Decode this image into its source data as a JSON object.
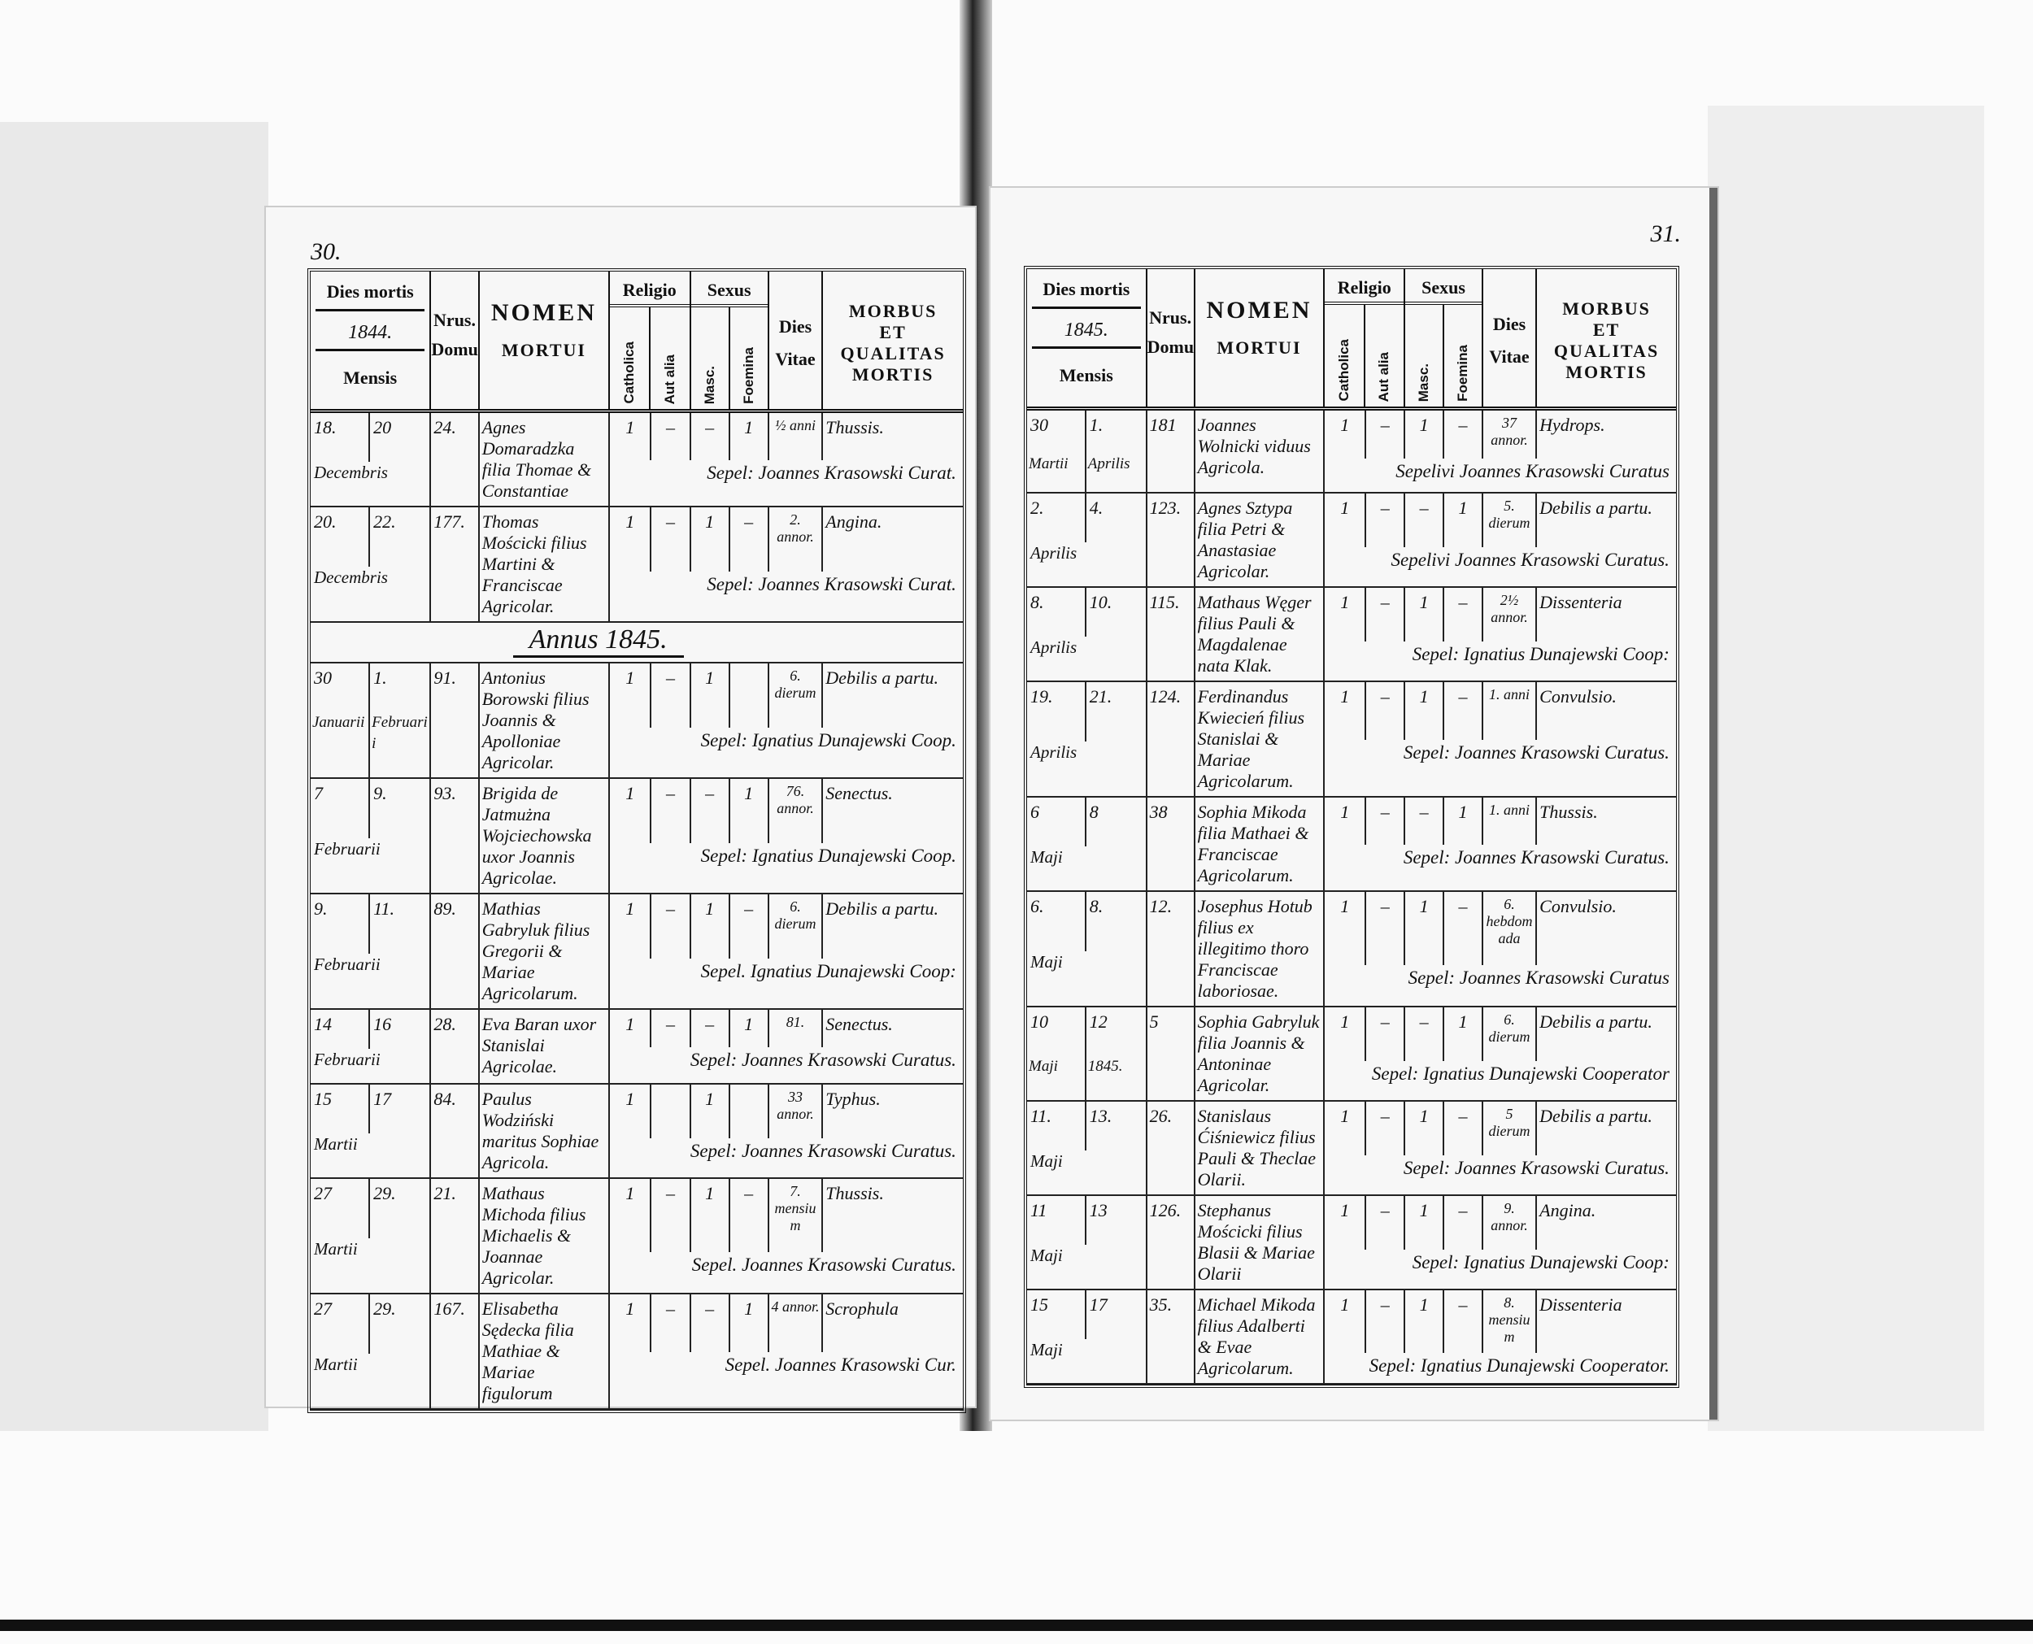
{
  "header": {
    "dies_mortis": "Dies mortis",
    "mensis": "Mensis",
    "nrus": "Nrus.",
    "domus": "Domus",
    "nomen": "NOMEN",
    "mortui": "MORTUI",
    "religio": "Religio",
    "catholica": "Catholica",
    "aut_alia": "Aut alia",
    "sexus": "Sexus",
    "masc": "Masc.",
    "foemina": "Foemina",
    "dies": "Dies",
    "vitae": "Vitae",
    "morbus": [
      "MORBUS",
      "ET",
      "QUALITAS",
      "MORTIS"
    ]
  },
  "pages": [
    {
      "page_number": "30.",
      "year": "1844.",
      "rows": [
        {
          "d1": "18.",
          "d2": "20",
          "m1": "Decembris",
          "m2": "",
          "house": "24.",
          "name": "Agnes Domaradzka filia Thomae & Constantiae",
          "cath": "1",
          "alia": "–",
          "masc": "–",
          "foem": "1",
          "age": "½ anni",
          "morbus": "Thussis.",
          "note": "Sepel: Joannes Krasowski Curat."
        },
        {
          "d1": "20.",
          "d2": "22.",
          "m1": "Decembris",
          "m2": "",
          "house": "177.",
          "name": "Thomas Mościcki filius Martini & Franciscae Agricolar.",
          "cath": "1",
          "alia": "–",
          "masc": "1",
          "foem": "–",
          "age": "2. annor.",
          "morbus": "Angina.",
          "note": "Sepel: Joannes Krasowski Curat."
        },
        {
          "annus": "Annus 1845."
        },
        {
          "d1": "30",
          "d2": "1.",
          "m1": "Januarii",
          "m2": "Februarii",
          "house": "91.",
          "name": "Antonius Borowski filius Joannis & Apolloniae Agricolar.",
          "cath": "1",
          "alia": "–",
          "masc": "1",
          "foem": "",
          "age": "6. dierum",
          "morbus": "Debilis a partu.",
          "note": "Sepel: Ignatius Dunajewski Coop."
        },
        {
          "d1": "7",
          "d2": "9.",
          "m1": "Februarii",
          "m2": "",
          "house": "93.",
          "name": "Brigida de Jatmużna Wojciechowska uxor Joannis Agricolae.",
          "cath": "1",
          "alia": "–",
          "masc": "–",
          "foem": "1",
          "age": "76. annor.",
          "morbus": "Senectus.",
          "note": "Sepel: Ignatius Dunajewski Coop."
        },
        {
          "d1": "9.",
          "d2": "11.",
          "m1": "Februarii",
          "m2": "",
          "house": "89.",
          "name": "Mathias Gabryluk filius Gregorii & Mariae Agricolarum.",
          "cath": "1",
          "alia": "–",
          "masc": "1",
          "foem": "–",
          "age": "6. dierum",
          "morbus": "Debilis a partu.",
          "note": "Sepel. Ignatius Dunajewski Coop:"
        },
        {
          "d1": "14",
          "d2": "16",
          "m1": "Februarii",
          "m2": "",
          "house": "28.",
          "name": "Eva Baran uxor Stanislai Agricolae.",
          "cath": "1",
          "alia": "–",
          "masc": "–",
          "foem": "1",
          "age": "81.",
          "morbus": "Senectus.",
          "note": "Sepel: Joannes Krasowski Curatus."
        },
        {
          "d1": "15",
          "d2": "17",
          "m1": "Martii",
          "m2": "",
          "house": "84.",
          "name": "Paulus Wodziński maritus Sophiae Agricola.",
          "cath": "1",
          "alia": "",
          "masc": "1",
          "foem": "",
          "age": "33 annor.",
          "morbus": "Typhus.",
          "note": "Sepel: Joannes Krasowski Curatus."
        },
        {
          "d1": "27",
          "d2": "29.",
          "m1": "Martii",
          "m2": "",
          "house": "21.",
          "name": "Mathaus Michoda filius Michaelis & Joannae Agricolar.",
          "cath": "1",
          "alia": "–",
          "masc": "1",
          "foem": "–",
          "age": "7. mensium",
          "morbus": "Thussis.",
          "note": "Sepel. Joannes Krasowski Curatus."
        },
        {
          "d1": "27",
          "d2": "29.",
          "m1": "Martii",
          "m2": "",
          "house": "167.",
          "name": "Elisabetha Sędecka filia Mathiae & Mariae figulorum",
          "cath": "1",
          "alia": "–",
          "masc": "–",
          "foem": "1",
          "age": "4 annor.",
          "morbus": "Scrophula",
          "note": "Sepel. Joannes Krasowski Cur."
        }
      ]
    },
    {
      "page_number": "31.",
      "year": "1845.",
      "rows": [
        {
          "d1": "30",
          "d2": "1.",
          "m1": "Martii",
          "m2": "Aprilis",
          "house": "181",
          "name": "Joannes Wolnicki viduus Agricola.",
          "cath": "1",
          "alia": "–",
          "masc": "1",
          "foem": "–",
          "age": "37 annor.",
          "morbus": "Hydrops.",
          "note": "Sepelivi Joannes Krasowski Curatus"
        },
        {
          "d1": "2.",
          "d2": "4.",
          "m1": "Aprilis",
          "m2": "",
          "house": "123.",
          "name": "Agnes Sztypa filia Petri & Anastasiae Agricolar.",
          "cath": "1",
          "alia": "–",
          "masc": "–",
          "foem": "1",
          "age": "5. dierum",
          "morbus": "Debilis a partu.",
          "note": "Sepelivi Joannes Krasowski Curatus."
        },
        {
          "d1": "8.",
          "d2": "10.",
          "m1": "Aprilis",
          "m2": "",
          "house": "115.",
          "name": "Mathaus Węger filius Pauli & Magdalenae nata Klak.",
          "cath": "1",
          "alia": "–",
          "masc": "1",
          "foem": "–",
          "age": "2½ annor.",
          "morbus": "Dissenteria",
          "note": "Sepel: Ignatius Dunajewski Coop:"
        },
        {
          "d1": "19.",
          "d2": "21.",
          "m1": "Aprilis",
          "m2": "",
          "house": "124.",
          "name": "Ferdinandus Kwiecień filius Stanislai & Mariae Agricolarum.",
          "cath": "1",
          "alia": "–",
          "masc": "1",
          "foem": "–",
          "age": "1. anni",
          "morbus": "Convulsio.",
          "note": "Sepel: Joannes Krasowski Curatus."
        },
        {
          "d1": "6",
          "d2": "8",
          "m1": "Maji",
          "m2": "",
          "house": "38",
          "name": "Sophia Mikoda filia Mathaei & Franciscae Agricolarum.",
          "cath": "1",
          "alia": "–",
          "masc": "–",
          "foem": "1",
          "age": "1. anni",
          "morbus": "Thussis.",
          "note": "Sepel: Joannes Krasowski Curatus."
        },
        {
          "d1": "6.",
          "d2": "8.",
          "m1": "Maji",
          "m2": "",
          "house": "12.",
          "name": "Josephus Hotub filius ex illegitimo thoro Franciscae laboriosae.",
          "cath": "1",
          "alia": "–",
          "masc": "1",
          "foem": "–",
          "age": "6. hebdomada",
          "morbus": "Convulsio.",
          "note": "Sepel: Joannes Krasowski Curatus"
        },
        {
          "d1": "10",
          "d2": "12",
          "m1": "Maji",
          "m2": "1845.",
          "house": "5",
          "name": "Sophia Gabryluk filia Joannis & Antoninae Agricolar.",
          "cath": "1",
          "alia": "–",
          "masc": "–",
          "foem": "1",
          "age": "6. dierum",
          "morbus": "Debilis a partu.",
          "note": "Sepel: Ignatius Dunajewski Cooperator"
        },
        {
          "d1": "11.",
          "d2": "13.",
          "m1": "Maji",
          "m2": "",
          "house": "26.",
          "name": "Stanislaus Ćiśniewicz filius Pauli & Theclae Olarii.",
          "cath": "1",
          "alia": "–",
          "masc": "1",
          "foem": "–",
          "age": "5 dierum",
          "morbus": "Debilis a partu.",
          "note": "Sepel: Joannes Krasowski Curatus."
        },
        {
          "d1": "11",
          "d2": "13",
          "m1": "Maji",
          "m2": "",
          "house": "126.",
          "name": "Stephanus Mościcki filius Blasii & Mariae Olarii",
          "cath": "1",
          "alia": "–",
          "masc": "1",
          "foem": "–",
          "age": "9. annor.",
          "morbus": "Angina.",
          "note": "Sepel: Ignatius Dunajewski Coop:"
        },
        {
          "d1": "15",
          "d2": "17",
          "m1": "Maji",
          "m2": "",
          "house": "35.",
          "name": "Michael Mikoda filius Adalberti & Evae Agricolarum.",
          "cath": "1",
          "alia": "–",
          "masc": "1",
          "foem": "–",
          "age": "8. mensium",
          "morbus": "Dissenteria",
          "note": "Sepel: Ignatius Dunajewski Cooperator."
        }
      ]
    }
  ]
}
